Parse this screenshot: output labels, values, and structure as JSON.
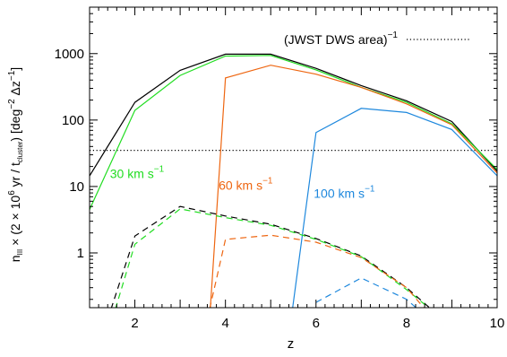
{
  "chart_data": {
    "type": "line",
    "xlabel": "z",
    "xlim": [
      1,
      10
    ],
    "ylim_log": [
      0.15,
      5000
    ],
    "xticks": [
      2,
      4,
      6,
      8,
      10
    ],
    "yticks": [
      {
        "value": 1,
        "label": "1"
      },
      {
        "value": 10,
        "label": "10"
      },
      {
        "value": 100,
        "label": "100"
      },
      {
        "value": 1000,
        "label": "1000"
      }
    ],
    "reference_line": {
      "value": 35,
      "label_pre": "(JWST DWS area)",
      "label_sup": "−1",
      "style": "dotted",
      "color": "#000000"
    },
    "ylabel_parts": [
      {
        "t": "n"
      },
      {
        "t": "III",
        "sub": true
      },
      {
        "t": " × (2 × 10"
      },
      {
        "t": "6",
        "sup": true
      },
      {
        "t": " yr  /  t"
      },
      {
        "t": "cluster",
        "sub": true
      },
      {
        "t": ")  [deg"
      },
      {
        "t": "−2",
        "sup": true
      },
      {
        "t": "  Δz"
      },
      {
        "t": "−1",
        "sup": true
      },
      {
        "t": "]"
      }
    ],
    "series": [
      {
        "color": "#000000",
        "dash": false,
        "points": [
          [
            1,
            14.5
          ],
          [
            2,
            185
          ],
          [
            3,
            560
          ],
          [
            4,
            980
          ],
          [
            5,
            980
          ],
          [
            6,
            600
          ],
          [
            7,
            330
          ],
          [
            8,
            195
          ],
          [
            9,
            95
          ],
          [
            10,
            17
          ]
        ]
      },
      {
        "color": "#22dd22",
        "dash": false,
        "points": [
          [
            1,
            4.5
          ],
          [
            2,
            140
          ],
          [
            3,
            470
          ],
          [
            4,
            920
          ],
          [
            5,
            940
          ],
          [
            6,
            570
          ],
          [
            7,
            310
          ],
          [
            8,
            185
          ],
          [
            9,
            88
          ],
          [
            10,
            18
          ]
        ]
      },
      {
        "color": "#ee6611",
        "dash": false,
        "points": [
          [
            3.65,
            0.1
          ],
          [
            4,
            430
          ],
          [
            5,
            670
          ],
          [
            6,
            490
          ],
          [
            7,
            310
          ],
          [
            8,
            175
          ],
          [
            9,
            85
          ],
          [
            10,
            16
          ]
        ]
      },
      {
        "color": "#1e88dd",
        "dash": false,
        "points": [
          [
            5.45,
            0.1
          ],
          [
            6,
            65
          ],
          [
            7,
            150
          ],
          [
            8,
            130
          ],
          [
            9,
            72
          ],
          [
            10,
            14.5
          ]
        ]
      },
      {
        "color": "#000000",
        "dash": true,
        "points": [
          [
            1.4,
            0.1
          ],
          [
            2,
            1.8
          ],
          [
            3,
            5.0
          ],
          [
            4,
            3.6
          ],
          [
            5,
            2.7
          ],
          [
            6,
            1.65
          ],
          [
            7,
            0.9
          ],
          [
            8,
            0.3
          ],
          [
            8.8,
            0.1
          ]
        ]
      },
      {
        "color": "#22dd22",
        "dash": true,
        "points": [
          [
            1.5,
            0.1
          ],
          [
            2,
            1.35
          ],
          [
            3,
            4.6
          ],
          [
            4,
            3.4
          ],
          [
            5,
            2.6
          ],
          [
            6,
            1.6
          ],
          [
            7,
            0.88
          ],
          [
            8,
            0.28
          ],
          [
            8.8,
            0.1
          ]
        ]
      },
      {
        "color": "#ee6611",
        "dash": true,
        "points": [
          [
            3.6,
            0.1
          ],
          [
            4,
            1.6
          ],
          [
            5,
            1.85
          ],
          [
            6,
            1.45
          ],
          [
            7,
            0.85
          ],
          [
            8,
            0.3
          ],
          [
            8.6,
            0.1
          ]
        ]
      },
      {
        "color": "#1e88dd",
        "dash": true,
        "points": [
          [
            6,
            0.18
          ],
          [
            7,
            0.42
          ],
          [
            8,
            0.2
          ],
          [
            8.5,
            0.1
          ]
        ]
      }
    ],
    "annotations": [
      {
        "text": "30 km s",
        "sup": "−1",
        "color": "#22dd22",
        "x": 1.45,
        "y": 13.5
      },
      {
        "text": "60 km s",
        "sup": "−1",
        "color": "#ee6611",
        "x": 3.85,
        "y": 9
      },
      {
        "text": "100 km s",
        "sup": "−1",
        "color": "#1e88dd",
        "x": 5.95,
        "y": 6.8
      }
    ]
  }
}
